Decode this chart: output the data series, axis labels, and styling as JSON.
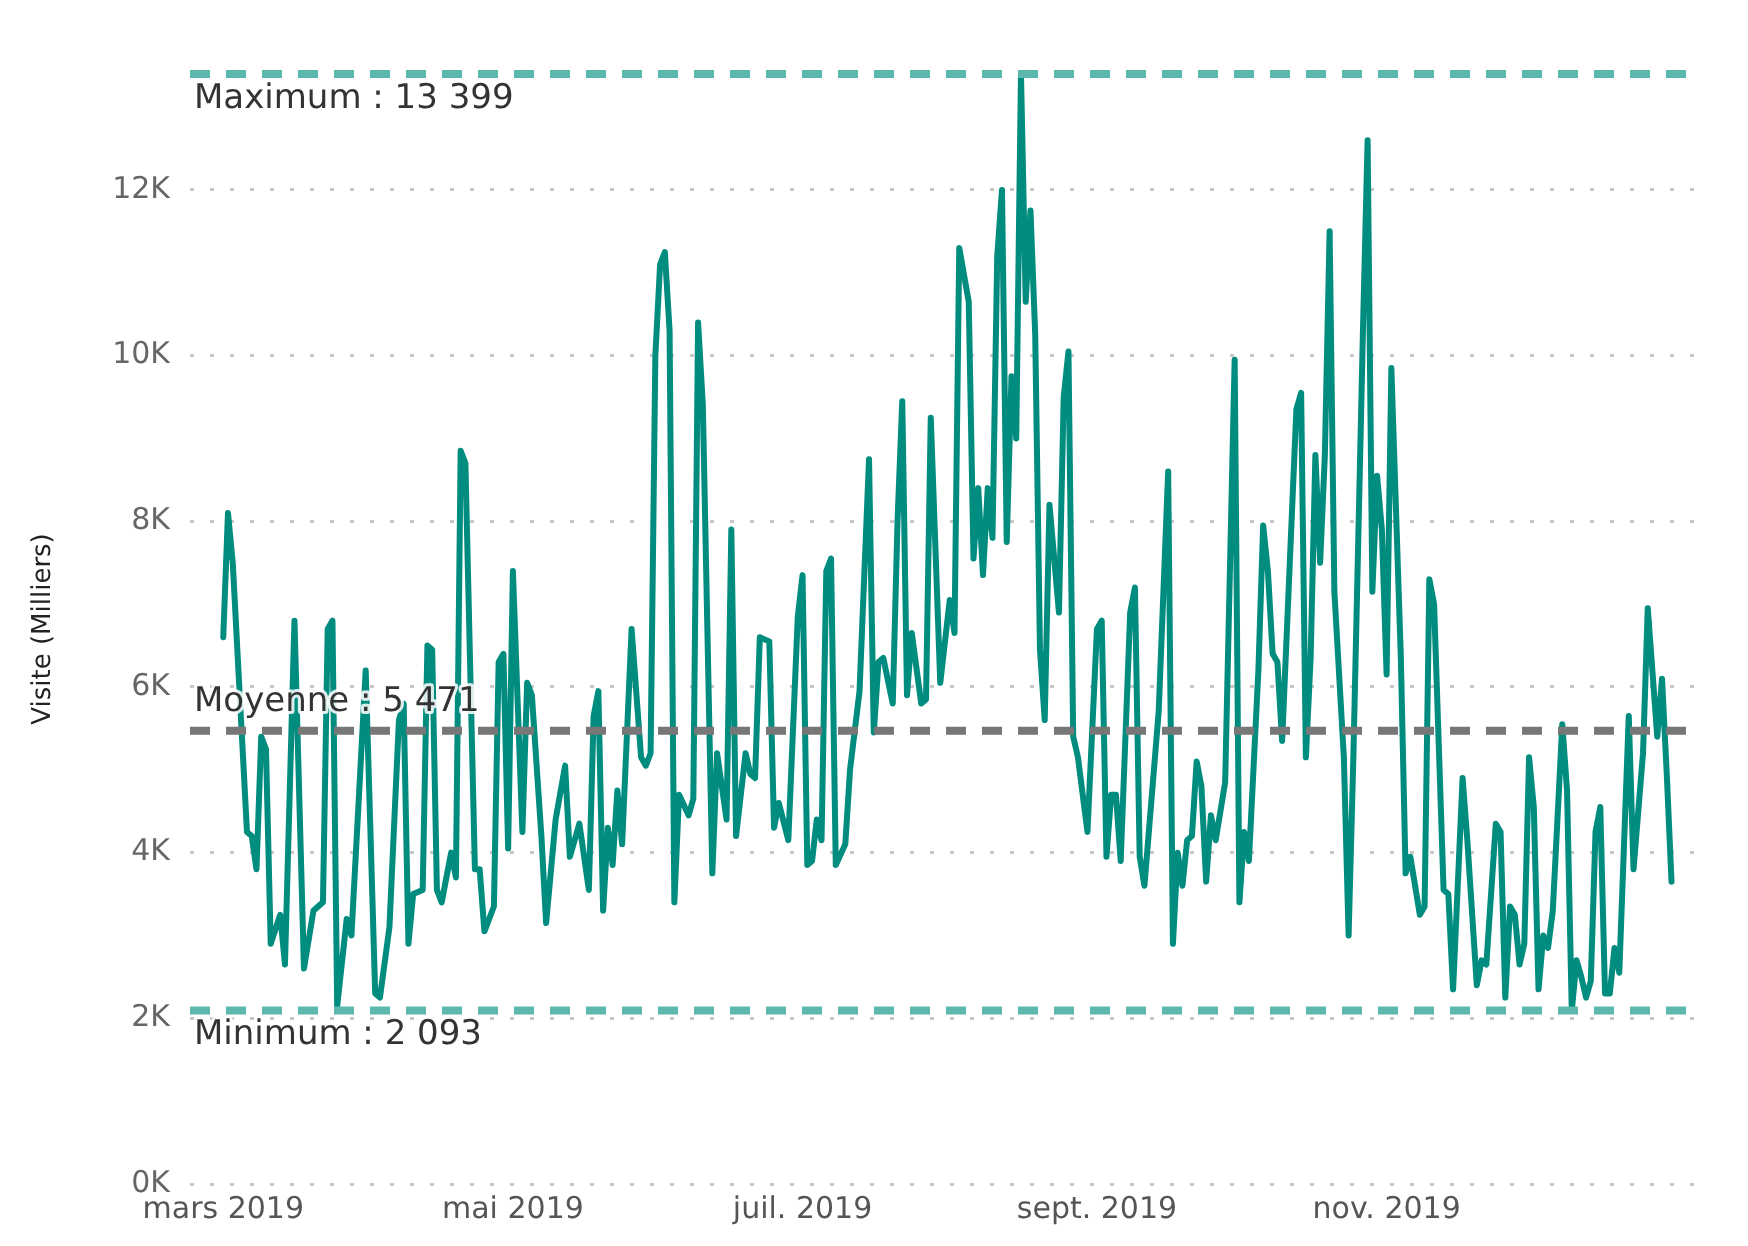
{
  "chart_data": {
    "type": "line",
    "ylabel": "Visite (Milliers)",
    "x": [
      "2019-03-01",
      "2019-03-02",
      "2019-03-03",
      "2019-03-06",
      "2019-03-07",
      "2019-03-08",
      "2019-03-09",
      "2019-03-10",
      "2019-03-11",
      "2019-03-13",
      "2019-03-14",
      "2019-03-16",
      "2019-03-18",
      "2019-03-20",
      "2019-03-22",
      "2019-03-23",
      "2019-03-24",
      "2019-03-25",
      "2019-03-27",
      "2019-03-28",
      "2019-03-31",
      "2019-04-02",
      "2019-04-03",
      "2019-04-05",
      "2019-04-07",
      "2019-04-08",
      "2019-04-09",
      "2019-04-10",
      "2019-04-12",
      "2019-04-13",
      "2019-04-14",
      "2019-04-15",
      "2019-04-16",
      "2019-04-18",
      "2019-04-19",
      "2019-04-20",
      "2019-04-21",
      "2019-04-23",
      "2019-04-24",
      "2019-04-25",
      "2019-04-27",
      "2019-04-28",
      "2019-04-29",
      "2019-04-30",
      "2019-05-01",
      "2019-05-03",
      "2019-05-04",
      "2019-05-05",
      "2019-05-07",
      "2019-05-08",
      "2019-05-10",
      "2019-05-12",
      "2019-05-13",
      "2019-05-15",
      "2019-05-17",
      "2019-05-18",
      "2019-05-19",
      "2019-05-20",
      "2019-05-21",
      "2019-05-22",
      "2019-05-23",
      "2019-05-24",
      "2019-05-26",
      "2019-05-28",
      "2019-05-29",
      "2019-05-30",
      "2019-05-31",
      "2019-06-01",
      "2019-06-02",
      "2019-06-03",
      "2019-06-04",
      "2019-06-05",
      "2019-06-07",
      "2019-06-08",
      "2019-06-09",
      "2019-06-10",
      "2019-06-12",
      "2019-06-13",
      "2019-06-15",
      "2019-06-16",
      "2019-06-17",
      "2019-06-19",
      "2019-06-20",
      "2019-06-21",
      "2019-06-22",
      "2019-06-24",
      "2019-06-25",
      "2019-06-26",
      "2019-06-28",
      "2019-06-30",
      "2019-07-01",
      "2019-07-02",
      "2019-07-03",
      "2019-07-04",
      "2019-07-05",
      "2019-07-06",
      "2019-07-07",
      "2019-07-08",
      "2019-07-10",
      "2019-07-11",
      "2019-07-13",
      "2019-07-15",
      "2019-07-16",
      "2019-07-17",
      "2019-07-18",
      "2019-07-20",
      "2019-07-21",
      "2019-07-22",
      "2019-07-23",
      "2019-07-24",
      "2019-07-26",
      "2019-07-27",
      "2019-07-28",
      "2019-07-30",
      "2019-08-01",
      "2019-08-02",
      "2019-08-03",
      "2019-08-05",
      "2019-08-06",
      "2019-08-07",
      "2019-08-08",
      "2019-08-09",
      "2019-08-10",
      "2019-08-11",
      "2019-08-12",
      "2019-08-13",
      "2019-08-14",
      "2019-08-15",
      "2019-08-16",
      "2019-08-17",
      "2019-08-18",
      "2019-08-19",
      "2019-08-20",
      "2019-08-21",
      "2019-08-22",
      "2019-08-24",
      "2019-08-25",
      "2019-08-26",
      "2019-08-27",
      "2019-08-28",
      "2019-08-30",
      "2019-09-01",
      "2019-09-02",
      "2019-09-03",
      "2019-09-04",
      "2019-09-05",
      "2019-09-06",
      "2019-09-08",
      "2019-09-09",
      "2019-09-10",
      "2019-09-11",
      "2019-09-14",
      "2019-09-16",
      "2019-09-17",
      "2019-09-18",
      "2019-09-19",
      "2019-09-20",
      "2019-09-21",
      "2019-09-22",
      "2019-09-23",
      "2019-09-24",
      "2019-09-25",
      "2019-09-26",
      "2019-09-28",
      "2019-09-30",
      "2019-10-01",
      "2019-10-02",
      "2019-10-03",
      "2019-10-05",
      "2019-10-06",
      "2019-10-07",
      "2019-10-08",
      "2019-10-09",
      "2019-10-10",
      "2019-10-13",
      "2019-10-14",
      "2019-10-15",
      "2019-10-16",
      "2019-10-17",
      "2019-10-18",
      "2019-10-19",
      "2019-10-20",
      "2019-10-21",
      "2019-10-23",
      "2019-10-24",
      "2019-10-25",
      "2019-10-27",
      "2019-10-28",
      "2019-10-29",
      "2019-10-30",
      "2019-10-31",
      "2019-11-01",
      "2019-11-02",
      "2019-11-04",
      "2019-11-05",
      "2019-11-06",
      "2019-11-08",
      "2019-11-09",
      "2019-11-10",
      "2019-11-11",
      "2019-11-13",
      "2019-11-14",
      "2019-11-15",
      "2019-11-17",
      "2019-11-18",
      "2019-11-20",
      "2019-11-21",
      "2019-11-22",
      "2019-11-24",
      "2019-11-25",
      "2019-11-26",
      "2019-11-27",
      "2019-11-28",
      "2019-11-29",
      "2019-11-30",
      "2019-12-01",
      "2019-12-02",
      "2019-12-03",
      "2019-12-04",
      "2019-12-05",
      "2019-12-06",
      "2019-12-08",
      "2019-12-09",
      "2019-12-10",
      "2019-12-11",
      "2019-12-12",
      "2019-12-13",
      "2019-12-14",
      "2019-12-15",
      "2019-12-16",
      "2019-12-17",
      "2019-12-18",
      "2019-12-19",
      "2019-12-20",
      "2019-12-22",
      "2019-12-23",
      "2019-12-25",
      "2019-12-26",
      "2019-12-28",
      "2019-12-29",
      "2019-12-30",
      "2019-12-31"
    ],
    "series": [
      {
        "color": "#008c7e",
        "values": [
          6600,
          8100,
          7500,
          4250,
          4200,
          3800,
          5400,
          5250,
          2900,
          3250,
          2650,
          6800,
          2600,
          3300,
          3400,
          6700,
          6800,
          2150,
          3200,
          3000,
          6200,
          2300,
          2250,
          3100,
          5600,
          5800,
          2900,
          3500,
          3550,
          6500,
          6450,
          3550,
          3400,
          4000,
          3700,
          8850,
          8700,
          3800,
          3800,
          3050,
          3350,
          6300,
          6400,
          4050,
          7400,
          4250,
          6050,
          5900,
          4200,
          3150,
          4400,
          5050,
          3950,
          4350,
          3550,
          5650,
          5950,
          3300,
          4300,
          3850,
          4750,
          4100,
          6700,
          5150,
          5050,
          5200,
          10000,
          11100,
          11250,
          10300,
          3400,
          4700,
          4450,
          4650,
          10400,
          9400,
          3750,
          5200,
          4400,
          7900,
          4200,
          5200,
          4950,
          4900,
          6600,
          6550,
          4300,
          4600,
          4150,
          6850,
          7350,
          3850,
          3900,
          4400,
          4150,
          7400,
          7550,
          3850,
          4100,
          5000,
          5950,
          8750,
          5450,
          6300,
          6350,
          5800,
          8000,
          9450,
          5900,
          6650,
          5800,
          5850,
          9250,
          6050,
          7050,
          6650,
          11300,
          10650,
          7550,
          8400,
          7350,
          8400,
          7800,
          11200,
          12000,
          7750,
          9750,
          9000,
          13399,
          10650,
          11750,
          10250,
          6450,
          5600,
          8200,
          6900,
          9500,
          10050,
          5400,
          5150,
          4250,
          6700,
          6800,
          3950,
          4700,
          4700,
          3900,
          6900,
          7200,
          3950,
          3600,
          5700,
          8600,
          2900,
          4000,
          3600,
          4150,
          4200,
          5100,
          4800,
          3650,
          4450,
          4150,
          4850,
          9950,
          3400,
          4250,
          3900,
          6200,
          7950,
          7400,
          6400,
          6300,
          5350,
          9350,
          9550,
          5150,
          6350,
          8800,
          7500,
          8800,
          11500,
          7150,
          5150,
          3000,
          5150,
          10250,
          12600,
          7150,
          8550,
          7900,
          6150,
          9850,
          6350,
          3750,
          3950,
          3250,
          3350,
          7300,
          7000,
          3550,
          3500,
          2350,
          4900,
          4150,
          2400,
          2700,
          2650,
          4350,
          4250,
          2250,
          3350,
          3250,
          2650,
          2900,
          5150,
          4550,
          2350,
          3000,
          2850,
          3300,
          5550,
          4750,
          2093,
          2700,
          2500,
          2250,
          2450,
          4250,
          4550,
          2300,
          2300,
          2850,
          2550,
          5650,
          3800,
          5200,
          6950,
          5400,
          6100,
          4950,
          3650
        ]
      }
    ],
    "xlim": [
      "2019-02-22",
      "2020-01-06"
    ],
    "xticks": [
      {
        "value": "2019-03-01",
        "label": "mars 2019"
      },
      {
        "value": "2019-05-01",
        "label": "mai 2019"
      },
      {
        "value": "2019-07-01",
        "label": "juil. 2019"
      },
      {
        "value": "2019-09-01",
        "label": "sept. 2019"
      },
      {
        "value": "2019-11-01",
        "label": "nov. 2019"
      }
    ],
    "ylim": [
      0,
      13399
    ],
    "yticks": [
      {
        "value": 0,
        "label": "0K"
      },
      {
        "value": 2000,
        "label": "2K"
      },
      {
        "value": 4000,
        "label": "4K"
      },
      {
        "value": 6000,
        "label": "6K"
      },
      {
        "value": 8000,
        "label": "8K"
      },
      {
        "value": 10000,
        "label": "10K"
      },
      {
        "value": 12000,
        "label": "12K"
      }
    ],
    "ref_lines": [
      {
        "axis": "y",
        "value": 13399,
        "label": "Maximum : 13 399",
        "color": "#5cb8ad",
        "line_style": "dashed"
      },
      {
        "axis": "y",
        "value": 5471,
        "label": "Moyenne : 5 471",
        "color": "#777777",
        "line_style": "dashed"
      },
      {
        "axis": "y",
        "value": 2093,
        "label": "Minimum : 2 093",
        "color": "#5cb8ad",
        "line_style": "dashed"
      }
    ],
    "grid": "y",
    "legend": false,
    "marker": "none",
    "line_style": "solid"
  }
}
